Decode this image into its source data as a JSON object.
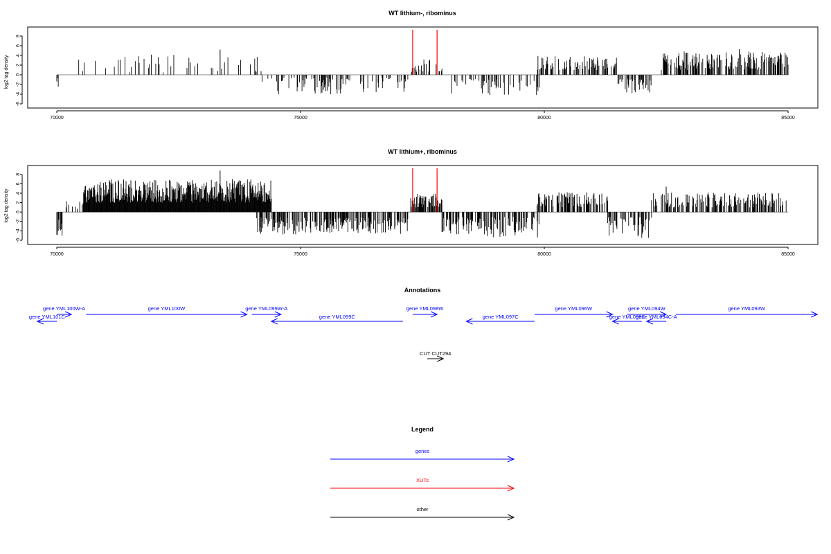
{
  "chart_data": [
    {
      "type": "bar",
      "title": "WT lithium-, ribominus",
      "xlabel": "",
      "ylabel": "log2 tag density",
      "xlim": [
        69900,
        85600
      ],
      "ylim": [
        -6,
        9
      ],
      "x_ticks": [
        "70000",
        "75000",
        "80000",
        "85000"
      ],
      "y_ticks": [
        "8",
        "6",
        "4",
        "2",
        "0",
        "-2",
        "-4",
        "-6"
      ],
      "markers": {
        "positions": [
          77300,
          77800
        ],
        "color": "#ff0000"
      },
      "regions": [
        {
          "start": 70000,
          "end": 70100,
          "min": -2.5,
          "max": 0,
          "density": 0.3
        },
        {
          "start": 70400,
          "end": 74200,
          "min": 0.5,
          "max": 4.2,
          "density": 0.12,
          "peak": {
            "x": 73350,
            "y": 5.2
          }
        },
        {
          "start": 74200,
          "end": 77200,
          "min": -4.0,
          "max": -0.5,
          "density": 0.25
        },
        {
          "start": 77250,
          "end": 77900,
          "min": 0.6,
          "max": 3.5,
          "density": 0.3
        },
        {
          "start": 78100,
          "end": 79900,
          "min": -4.2,
          "max": -0.8,
          "density": 0.3
        },
        {
          "start": 79850,
          "end": 81500,
          "min": 1.0,
          "max": 4.0,
          "density": 0.45
        },
        {
          "start": 81500,
          "end": 82200,
          "min": -3.8,
          "max": -0.8,
          "density": 0.45
        },
        {
          "start": 82400,
          "end": 85000,
          "min": 1.0,
          "max": 4.8,
          "density": 0.5,
          "peak": {
            "x": 84000,
            "y": 5.3
          }
        }
      ]
    },
    {
      "type": "bar",
      "title": "WT lithium+, ribominus",
      "xlabel": "",
      "ylabel": "log2 tag density",
      "xlim": [
        69900,
        85600
      ],
      "ylim": [
        -6,
        9
      ],
      "x_ticks": [
        "70000",
        "75000",
        "80000",
        "85000"
      ],
      "y_ticks": [
        "8",
        "6",
        "4",
        "2",
        "0",
        "-2",
        "-4",
        "-6"
      ],
      "markers": {
        "positions": [
          77300,
          77800
        ],
        "color": "#ff0000"
      },
      "regions": [
        {
          "start": 70000,
          "end": 70120,
          "min": -5.8,
          "max": -1.0,
          "density": 0.5
        },
        {
          "start": 70120,
          "end": 70550,
          "min": 0.5,
          "max": 2.3,
          "density": 0.15
        },
        {
          "start": 70550,
          "end": 74400,
          "min": 2.0,
          "max": 7.0,
          "density": 1.0,
          "peak": {
            "x": 73350,
            "y": 8.8
          }
        },
        {
          "start": 74100,
          "end": 77200,
          "min": -4.8,
          "max": -1.0,
          "density": 0.6
        },
        {
          "start": 77250,
          "end": 77900,
          "min": 1.0,
          "max": 4.0,
          "density": 0.7
        },
        {
          "start": 77900,
          "end": 79900,
          "min": -5.5,
          "max": -1.0,
          "density": 0.5
        },
        {
          "start": 79850,
          "end": 81300,
          "min": 1.0,
          "max": 4.2,
          "density": 0.6
        },
        {
          "start": 81300,
          "end": 82200,
          "min": -5.5,
          "max": -1.0,
          "density": 0.5
        },
        {
          "start": 82200,
          "end": 85000,
          "min": 1.0,
          "max": 4.2,
          "density": 0.45,
          "peak": {
            "x": 82500,
            "y": 5.4
          }
        }
      ]
    }
  ],
  "annotations": {
    "title": "Annotations",
    "genes": [
      {
        "label": "gene YML100W-A",
        "start": 70000,
        "end": 70300,
        "strand": "+",
        "row": 0
      },
      {
        "label": "gene YML101C",
        "start": 69600,
        "end": 70000,
        "strand": "-",
        "row": 1
      },
      {
        "label": "gene YML100W",
        "start": 70600,
        "end": 73900,
        "strand": "+",
        "row": 0
      },
      {
        "label": "gene YML099W-A",
        "start": 74000,
        "end": 74600,
        "strand": "+",
        "row": 0
      },
      {
        "label": "gene YML099C",
        "start": 74400,
        "end": 77100,
        "strand": "-",
        "row": 1
      },
      {
        "label": "gene YML098W",
        "start": 77300,
        "end": 77800,
        "strand": "+",
        "row": 0
      },
      {
        "label": "gene YML097C",
        "start": 78400,
        "end": 79800,
        "strand": "-",
        "row": 1
      },
      {
        "label": "gene YML096W",
        "start": 79800,
        "end": 81400,
        "strand": "+",
        "row": 0
      },
      {
        "label": "gene YML095C",
        "start": 81400,
        "end": 82000,
        "strand": "-",
        "row": 1
      },
      {
        "label": "gene YML094C-A",
        "start": 82100,
        "end": 82500,
        "strand": "-",
        "row": 1
      },
      {
        "label": "gene YML094W",
        "start": 81700,
        "end": 82500,
        "strand": "+",
        "row": 0
      },
      {
        "label": "gene YML093W",
        "start": 82700,
        "end": 85600,
        "strand": "+",
        "row": 0
      }
    ],
    "other": [
      {
        "label": "CUT CUT294",
        "start": 77600,
        "end": 77930,
        "strand": "+",
        "row": 2
      }
    ]
  },
  "legend": {
    "title": "Legend",
    "items": [
      {
        "label": "genes",
        "color": "#0000ff"
      },
      {
        "label": "XUTs",
        "color": "#ff0000"
      },
      {
        "label": "other",
        "color": "#000000"
      }
    ]
  }
}
